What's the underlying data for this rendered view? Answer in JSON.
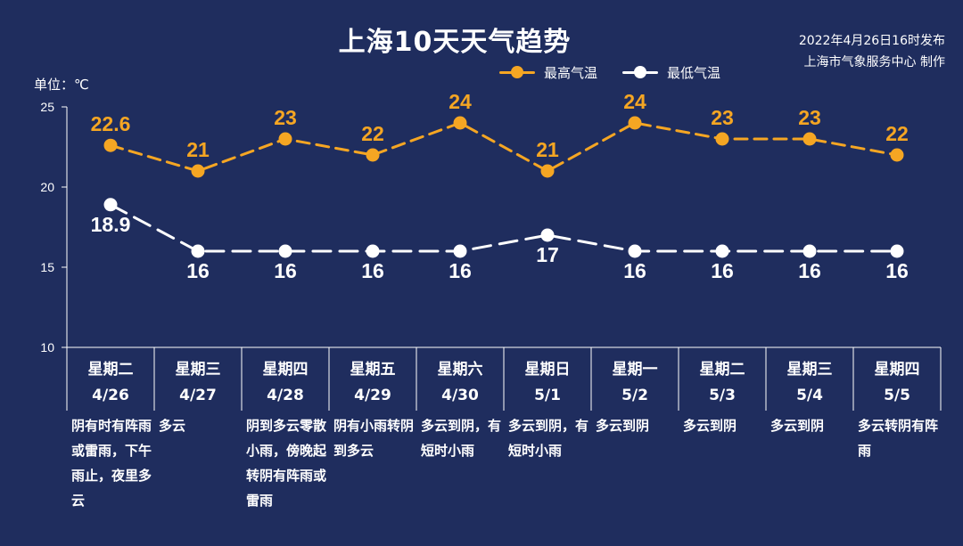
{
  "header": {
    "title": "上海10天天气趋势",
    "publish_time": "2022年4月26日16时发布",
    "publisher": "上海市气象服务中心 制作",
    "unit": "单位：℃"
  },
  "legend": {
    "max_label": "最高气温",
    "min_label": "最低气温"
  },
  "colors": {
    "background": "#1f2d5e",
    "max": "#f5a623",
    "min": "#ffffff",
    "axis": "#ffffff"
  },
  "chart_data": {
    "type": "line",
    "categories": [
      {
        "weekday": "星期二",
        "date": "4/26"
      },
      {
        "weekday": "星期三",
        "date": "4/27"
      },
      {
        "weekday": "星期四",
        "date": "4/28"
      },
      {
        "weekday": "星期五",
        "date": "4/29"
      },
      {
        "weekday": "星期六",
        "date": "4/30"
      },
      {
        "weekday": "星期日",
        "date": "5/1"
      },
      {
        "weekday": "星期一",
        "date": "5/2"
      },
      {
        "weekday": "星期二",
        "date": "5/3"
      },
      {
        "weekday": "星期三",
        "date": "5/4"
      },
      {
        "weekday": "星期四",
        "date": "5/5"
      }
    ],
    "series": [
      {
        "name": "最高气温",
        "values": [
          22.6,
          21,
          23,
          22,
          24,
          21,
          24,
          23,
          23,
          22
        ]
      },
      {
        "name": "最低气温",
        "values": [
          18.9,
          16,
          16,
          16,
          16,
          17,
          16,
          16,
          16,
          16
        ]
      }
    ],
    "ylim": [
      10,
      25
    ],
    "yticks": [
      10,
      15,
      20,
      25
    ],
    "grid": false,
    "legend": "top-right"
  },
  "weather": [
    "阴有时有阵雨或雷雨，下午雨止，夜里多云",
    "多云",
    "阴到多云零散小雨，傍晚起转阴有阵雨或雷雨",
    "阴有小雨转阴到多云",
    "多云到阴，有短时小雨",
    "多云到阴，有短时小雨",
    "多云到阴",
    "多云到阴",
    "多云到阴",
    "多云转阴有阵雨"
  ]
}
